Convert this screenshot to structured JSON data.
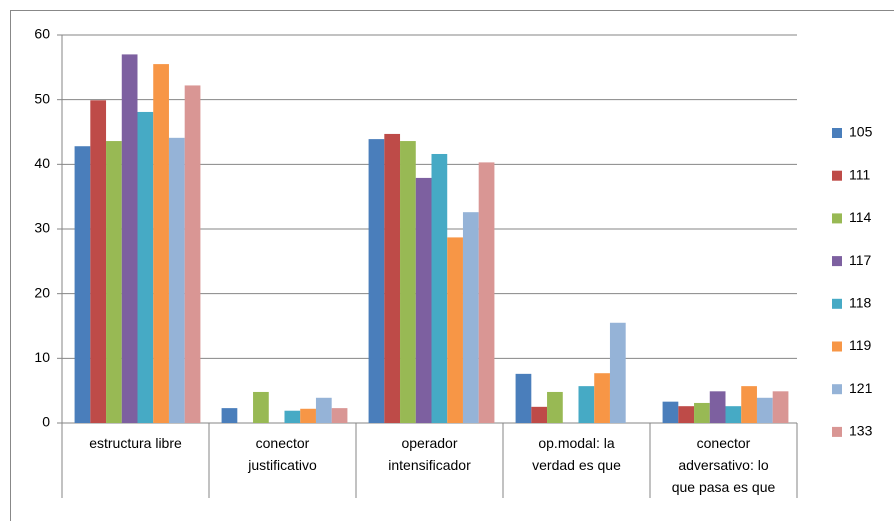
{
  "chart_data": {
    "type": "bar",
    "categories": [
      "estructura libre",
      "conector\njustificativo",
      "operador\nintensificador",
      "op.modal: la\nverdad es que",
      "conector\nadversativo: lo\nque pasa es que"
    ],
    "series": [
      {
        "name": "105",
        "color": "#4a7ebb",
        "values": [
          42.8,
          2.3,
          43.9,
          7.6,
          3.3
        ]
      },
      {
        "name": "111",
        "color": "#be4b48",
        "values": [
          49.9,
          0,
          44.7,
          2.5,
          2.6
        ]
      },
      {
        "name": "114",
        "color": "#98b954",
        "values": [
          43.6,
          4.8,
          43.6,
          4.8,
          3.1
        ]
      },
      {
        "name": "117",
        "color": "#7d60a0",
        "values": [
          57.0,
          0,
          37.9,
          0,
          4.9
        ]
      },
      {
        "name": "118",
        "color": "#46aac5",
        "values": [
          48.1,
          1.9,
          41.6,
          5.7,
          2.6
        ]
      },
      {
        "name": "119",
        "color": "#f79646",
        "values": [
          55.5,
          2.2,
          28.7,
          7.7,
          5.7
        ]
      },
      {
        "name": "121",
        "color": "#95b3d7",
        "values": [
          44.1,
          3.9,
          32.6,
          15.5,
          3.9
        ]
      },
      {
        "name": "133",
        "color": "#d99694",
        "values": [
          52.2,
          2.3,
          40.3,
          0,
          4.9
        ]
      }
    ],
    "ylim": [
      0,
      60
    ],
    "yticks": [
      0,
      10,
      20,
      30,
      40,
      50,
      60
    ],
    "grid": true,
    "legend": "right"
  }
}
